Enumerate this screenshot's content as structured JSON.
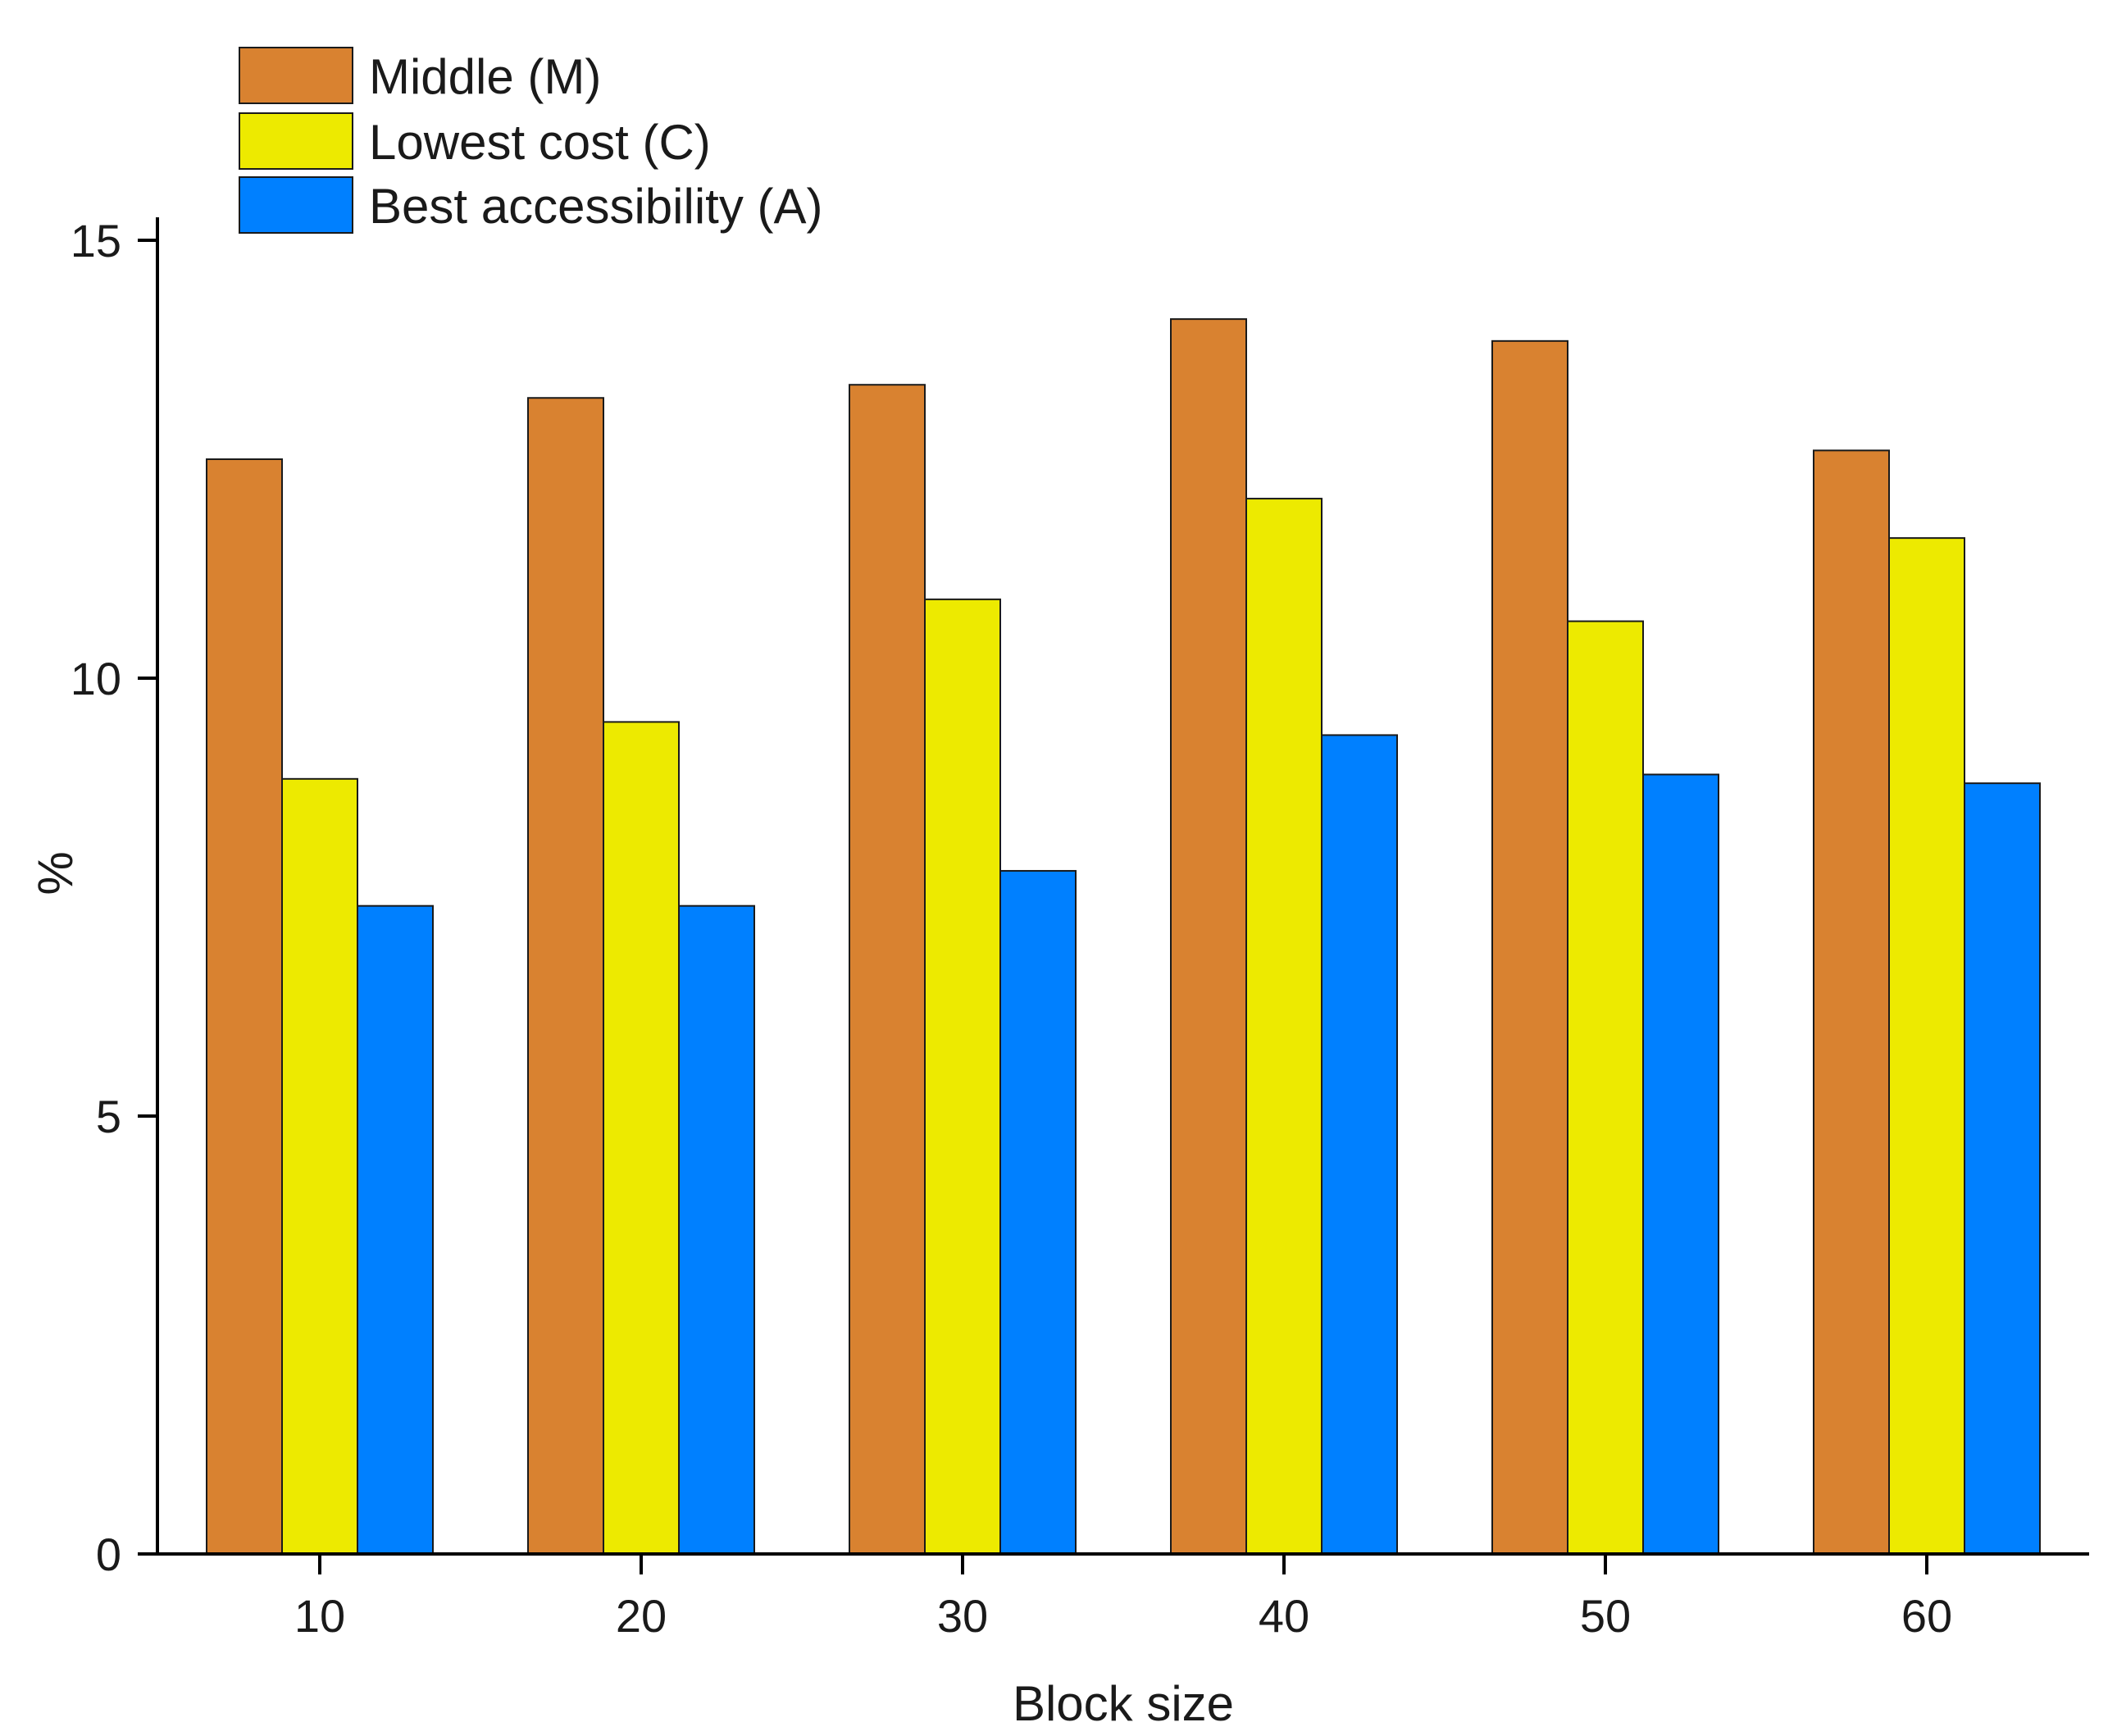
{
  "chart_data": {
    "type": "bar",
    "title": "",
    "xlabel": "Block size",
    "ylabel": "%",
    "categories": [
      "10",
      "20",
      "30",
      "40",
      "50",
      "60"
    ],
    "series": [
      {
        "name": "Middle (M)",
        "color": "#D98230",
        "values": [
          12.5,
          13.2,
          13.35,
          14.1,
          13.85,
          12.6
        ]
      },
      {
        "name": "Lowest cost (C)",
        "color": "#EDEA00",
        "values": [
          8.85,
          9.5,
          10.9,
          12.05,
          10.65,
          11.6
        ]
      },
      {
        "name": "Best accessibility (A)",
        "color": "#0080FF",
        "values": [
          7.4,
          7.4,
          7.8,
          9.35,
          8.9,
          8.8
        ]
      }
    ],
    "yticks": [
      "0",
      "5",
      "10",
      "15"
    ],
    "ylim": [
      0,
      15
    ],
    "grid": false,
    "legend_position": "top-left"
  }
}
